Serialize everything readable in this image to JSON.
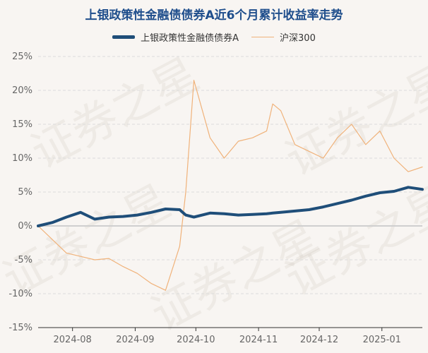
{
  "chart_data": {
    "type": "line",
    "title": "上银政策性金融债债券A近6个月累计收益率走势",
    "watermark": "证券之星",
    "y_ticks": [
      "25%",
      "20%",
      "15%",
      "10%",
      "5%",
      "0%",
      "-5%",
      "-10%",
      "-15%"
    ],
    "x_ticks": [
      "2024-08",
      "2024-09",
      "2024-10",
      "2024-11",
      "2024-12",
      "2025-01"
    ],
    "ylim": [
      -15,
      25
    ],
    "legend_position": "top",
    "grid": "horizontal dashed",
    "x_dates": [
      "2024-07-15",
      "2024-07-22",
      "2024-07-29",
      "2024-08-05",
      "2024-08-12",
      "2024-08-19",
      "2024-08-26",
      "2024-09-02",
      "2024-09-09",
      "2024-09-16",
      "2024-09-23",
      "2024-09-26",
      "2024-09-30",
      "2024-10-08",
      "2024-10-15",
      "2024-10-22",
      "2024-10-29",
      "2024-11-05",
      "2024-11-08",
      "2024-11-12",
      "2024-11-19",
      "2024-11-26",
      "2024-12-03",
      "2024-12-10",
      "2024-12-17",
      "2024-12-24",
      "2024-12-31",
      "2025-01-07",
      "2025-01-14",
      "2025-01-21"
    ],
    "series": [
      {
        "name": "上银政策性金融债债券A",
        "color": "#1f4e79",
        "values": [
          0.0,
          0.5,
          1.3,
          2.0,
          1.0,
          1.3,
          1.4,
          1.6,
          2.0,
          2.5,
          2.4,
          1.6,
          1.3,
          1.9,
          1.8,
          1.6,
          1.7,
          1.8,
          1.9,
          2.0,
          2.2,
          2.4,
          2.8,
          3.3,
          3.8,
          4.4,
          4.9,
          5.1,
          5.7,
          5.4
        ]
      },
      {
        "name": "沪深300",
        "color": "#f0b27a",
        "values": [
          0.0,
          -2.0,
          -4.0,
          -4.5,
          -5.0,
          -4.8,
          -6.0,
          -7.0,
          -8.5,
          -9.5,
          -3.0,
          5.0,
          21.5,
          13.0,
          10.0,
          12.5,
          13.0,
          14.0,
          18.0,
          17.0,
          12.0,
          11.0,
          10.0,
          13.0,
          15.0,
          12.0,
          14.0,
          10.0,
          8.0,
          8.7
        ]
      }
    ]
  }
}
